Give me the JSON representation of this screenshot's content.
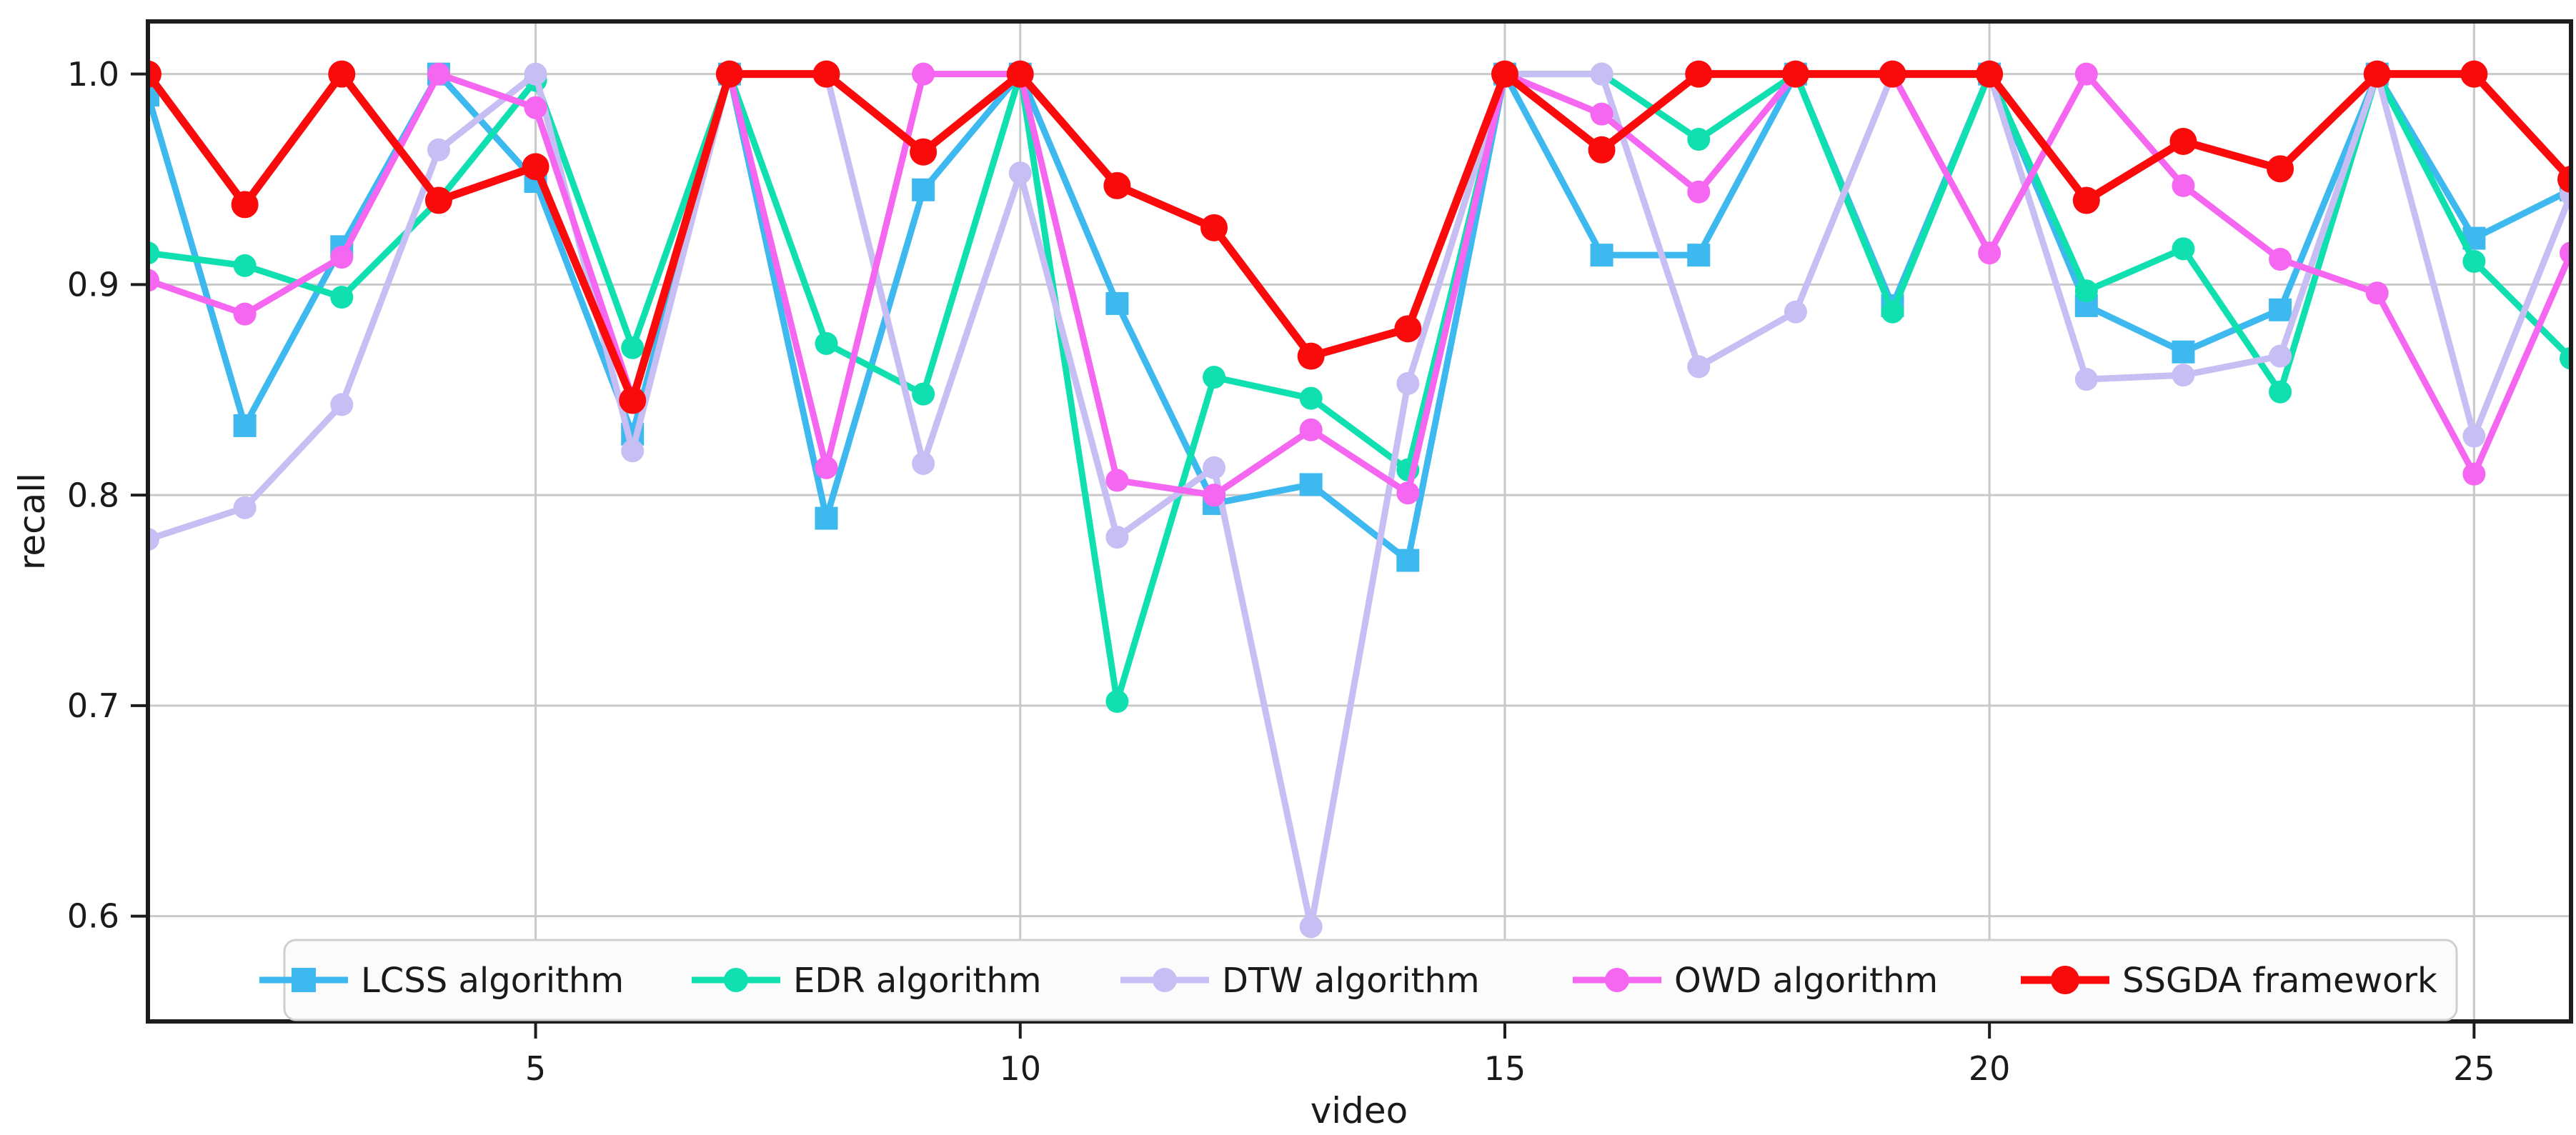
{
  "chart_data": {
    "type": "line",
    "title": "",
    "xlabel": "video",
    "ylabel": "recall",
    "xlim": [
      1,
      26
    ],
    "ylim": [
      0.55,
      1.025
    ],
    "grid": true,
    "legend_position": "lower center",
    "x_ticks": {
      "values": [
        5,
        10,
        15,
        20,
        25
      ],
      "labels": [
        "5",
        "10",
        "15",
        "20",
        "25"
      ]
    },
    "y_ticks": {
      "values": [
        1.0,
        0.9,
        0.8,
        0.7,
        0.6
      ],
      "labels": [
        "1.0",
        "0.9",
        "0.8",
        "0.7",
        "0.6"
      ]
    },
    "x_values": [
      1,
      2,
      3,
      4,
      5,
      6,
      7,
      8,
      9,
      10,
      11,
      12,
      13,
      14,
      15,
      16,
      17,
      18,
      19,
      20,
      21,
      22,
      23,
      24,
      25,
      26
    ],
    "series": [
      {
        "name": "LCSS algorithm",
        "color": "#3db9f0",
        "marker": "square",
        "values": [
          0.99,
          0.833,
          0.918,
          1.0,
          0.949,
          0.829,
          1.0,
          0.789,
          0.945,
          1.0,
          0.891,
          0.796,
          0.805,
          0.769,
          1.0,
          0.914,
          0.914,
          1.0,
          0.89,
          1.0,
          0.89,
          0.868,
          0.888,
          1.0,
          0.922,
          0.945
        ]
      },
      {
        "name": "EDR algorithm",
        "color": "#10dfb0",
        "marker": "circle",
        "values": [
          0.915,
          0.909,
          0.894,
          0.94,
          0.997,
          0.87,
          1.0,
          0.872,
          0.848,
          1.0,
          0.702,
          0.856,
          0.846,
          0.812,
          1.0,
          1.0,
          0.969,
          1.0,
          0.887,
          1.0,
          0.897,
          0.917,
          0.849,
          1.0,
          0.911,
          0.865
        ]
      },
      {
        "name": "DTW algorithm",
        "color": "#c7bef3",
        "marker": "circle",
        "values": [
          0.779,
          0.794,
          0.843,
          0.964,
          1.0,
          0.821,
          1.0,
          1.0,
          0.815,
          0.953,
          0.78,
          0.813,
          0.595,
          0.853,
          1.0,
          1.0,
          0.861,
          0.887,
          1.0,
          1.0,
          0.855,
          0.857,
          0.866,
          1.0,
          0.828,
          0.943
        ]
      },
      {
        "name": "OWD algorithm",
        "color": "#f567f0",
        "marker": "circle",
        "values": [
          0.902,
          0.886,
          0.913,
          1.0,
          0.984,
          0.846,
          1.0,
          0.813,
          1.0,
          1.0,
          0.807,
          0.8,
          0.831,
          0.801,
          1.0,
          0.981,
          0.944,
          1.0,
          1.0,
          0.915,
          1.0,
          0.947,
          0.912,
          0.896,
          0.81,
          0.915
        ]
      },
      {
        "name": "SSGDA framework",
        "color": "#fa0a0a",
        "marker": "circle",
        "values": [
          1.0,
          0.938,
          1.0,
          0.94,
          0.956,
          0.845,
          1.0,
          1.0,
          0.963,
          1.0,
          0.947,
          0.927,
          0.866,
          0.879,
          1.0,
          0.964,
          1.0,
          1.0,
          1.0,
          1.0,
          0.94,
          0.968,
          0.955,
          1.0,
          1.0,
          0.95
        ]
      }
    ],
    "styles": {
      "grid_color": "#c9c9c9",
      "spine_color": "#1c1c1c",
      "legend_face": "#fbfbfb",
      "legend_edge": "#cfcfcf",
      "background": "#ffffff"
    }
  }
}
